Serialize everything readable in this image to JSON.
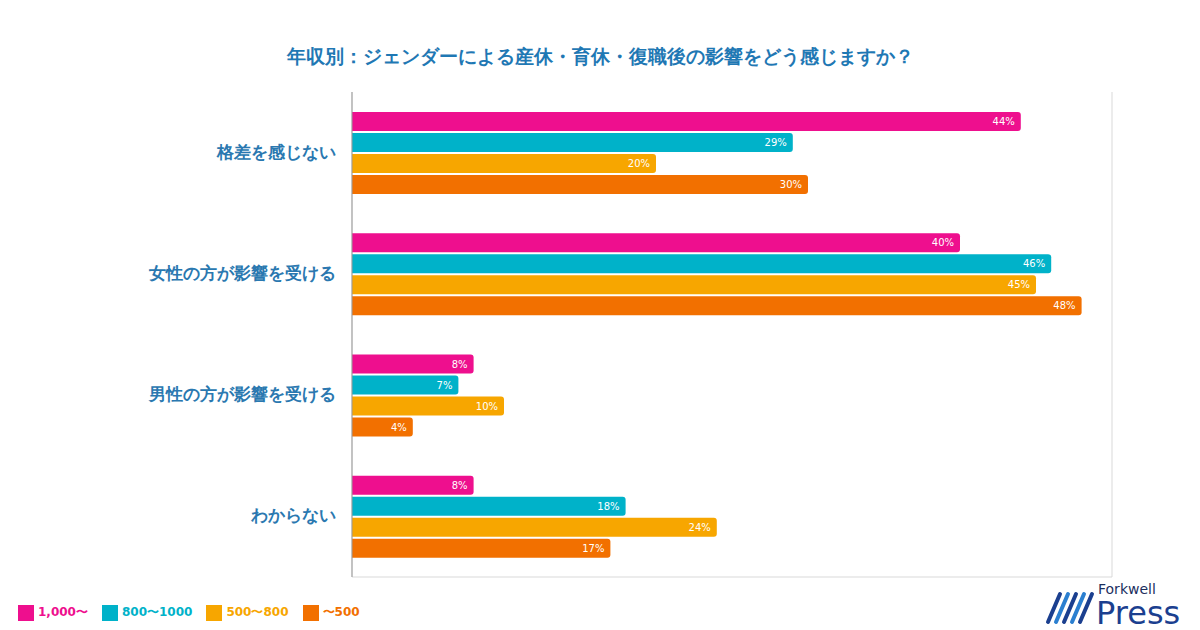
{
  "chart_data": {
    "type": "bar",
    "orientation": "horizontal",
    "title": "年収別：ジェンダーによる産休・育休・復職後の影響をどう感じますか？",
    "categories": [
      "格差を感じない",
      "女性の方が影響を受ける",
      "男性の方が影響を受ける",
      "わからない"
    ],
    "series": [
      {
        "name": "1,000〜",
        "color": "#ee0f8e",
        "values": [
          44,
          40,
          8,
          8
        ],
        "value_labels": [
          "44%",
          "40%",
          "8%",
          "8%"
        ]
      },
      {
        "name": "800〜1000",
        "color": "#00b2c9",
        "values": [
          29,
          46,
          7,
          18
        ],
        "value_labels": [
          "29%",
          "46%",
          "7%",
          "18%"
        ]
      },
      {
        "name": "500〜800",
        "color": "#f7a600",
        "values": [
          20,
          45,
          10,
          24
        ],
        "value_labels": [
          "20%",
          "45%",
          "10%",
          "24%"
        ]
      },
      {
        "name": "〜500",
        "color": "#f27000",
        "values": [
          30,
          48,
          4,
          17
        ],
        "value_labels": [
          "30%",
          "48%",
          "4%",
          "17%"
        ]
      }
    ],
    "xlim": [
      0,
      50
    ],
    "xticks": [
      0,
      10,
      20,
      30,
      40
    ],
    "grid": true,
    "data_labels": true,
    "tick_labels": "y",
    "legend": "bottom-left"
  },
  "logo": {
    "brand": "Forkwell",
    "name": "Press"
  }
}
